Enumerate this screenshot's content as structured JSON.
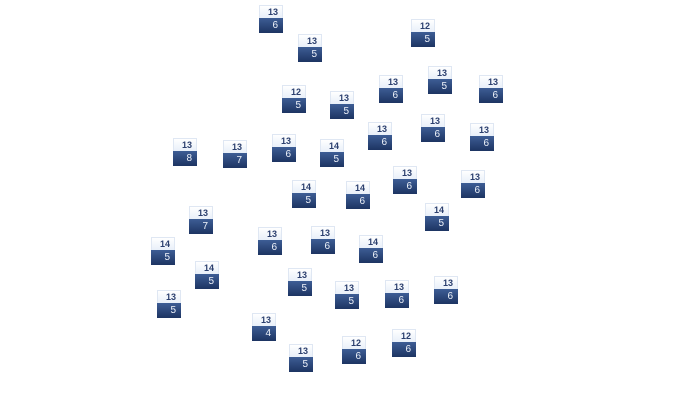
{
  "tiles": [
    {
      "top": "13",
      "bottom": "6"
    },
    {
      "top": "13",
      "bottom": "5"
    },
    {
      "top": "12",
      "bottom": "5"
    },
    {
      "top": "12",
      "bottom": "5"
    },
    {
      "top": "13",
      "bottom": "5"
    },
    {
      "top": "13",
      "bottom": "6"
    },
    {
      "top": "13",
      "bottom": "5"
    },
    {
      "top": "13",
      "bottom": "6"
    },
    {
      "top": "13",
      "bottom": "6"
    },
    {
      "top": "13",
      "bottom": "6"
    },
    {
      "top": "13",
      "bottom": "6"
    },
    {
      "top": "13",
      "bottom": "8"
    },
    {
      "top": "13",
      "bottom": "7"
    },
    {
      "top": "13",
      "bottom": "6"
    },
    {
      "top": "14",
      "bottom": "5"
    },
    {
      "top": "14",
      "bottom": "5"
    },
    {
      "top": "14",
      "bottom": "6"
    },
    {
      "top": "13",
      "bottom": "6"
    },
    {
      "top": "13",
      "bottom": "6"
    },
    {
      "top": "13",
      "bottom": "7"
    },
    {
      "top": "14",
      "bottom": "5"
    },
    {
      "top": "14",
      "bottom": "5"
    },
    {
      "top": "13",
      "bottom": "6"
    },
    {
      "top": "13",
      "bottom": "6"
    },
    {
      "top": "14",
      "bottom": "6"
    },
    {
      "top": "14",
      "bottom": "5"
    },
    {
      "top": "13",
      "bottom": "5"
    },
    {
      "top": "13",
      "bottom": "5"
    },
    {
      "top": "13",
      "bottom": "6"
    },
    {
      "top": "13",
      "bottom": "6"
    },
    {
      "top": "13",
      "bottom": "5"
    },
    {
      "top": "13",
      "bottom": "4"
    },
    {
      "top": "12",
      "bottom": "6"
    },
    {
      "top": "12",
      "bottom": "6"
    },
    {
      "top": "13",
      "bottom": "5"
    }
  ],
  "colors": {
    "top_text": "#2b3f6e",
    "bottom_bg": "#2a4478",
    "bottom_text": "#f0f4fb"
  }
}
